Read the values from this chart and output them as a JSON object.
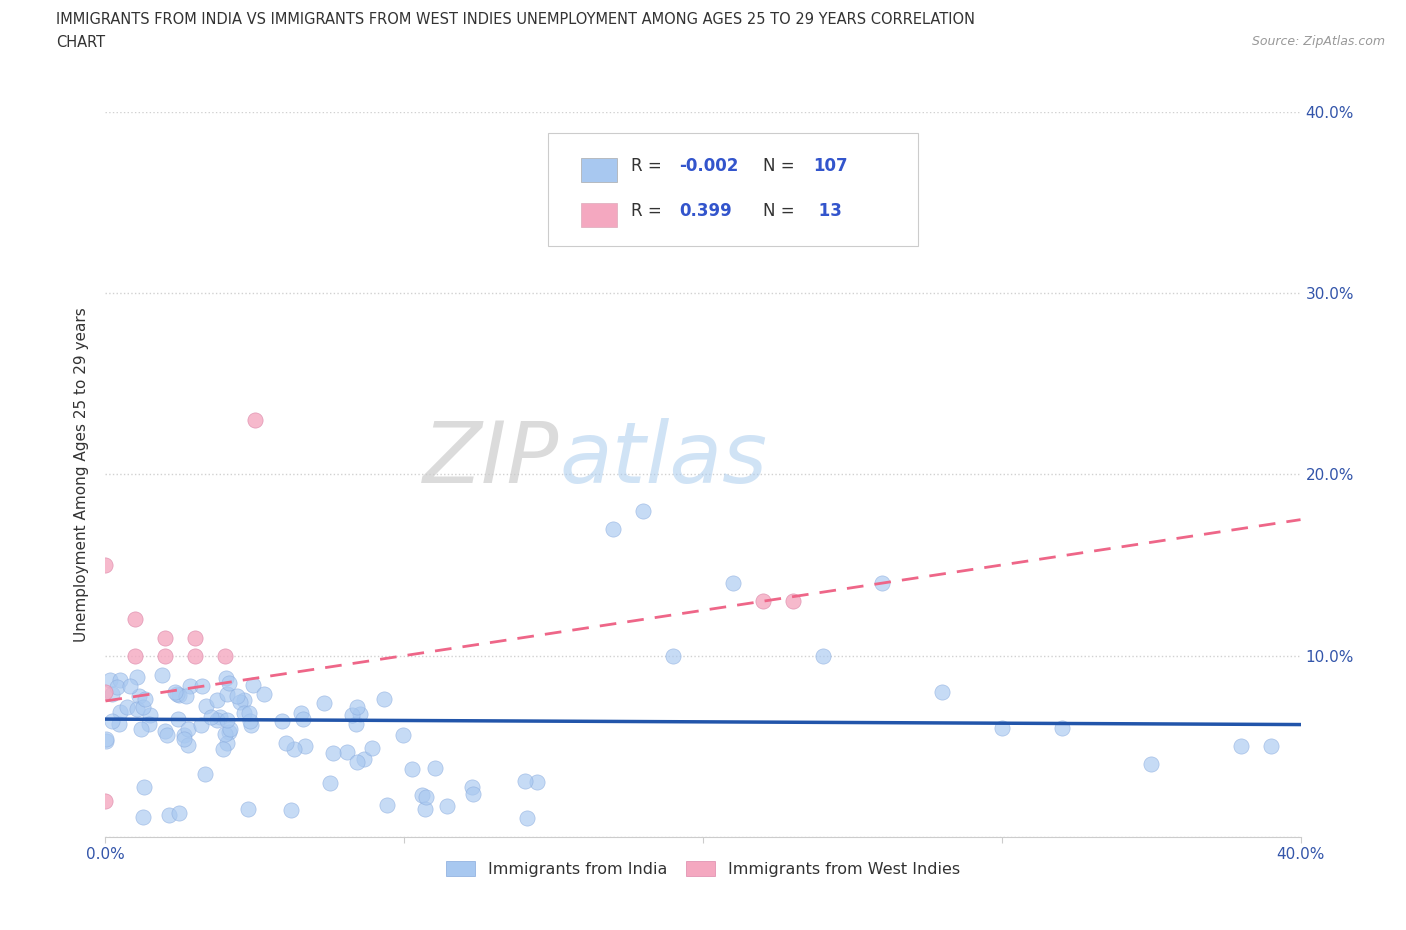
{
  "title_line1": "IMMIGRANTS FROM INDIA VS IMMIGRANTS FROM WEST INDIES UNEMPLOYMENT AMONG AGES 25 TO 29 YEARS CORRELATION",
  "title_line2": "CHART",
  "source": "Source: ZipAtlas.com",
  "ylabel": "Unemployment Among Ages 25 to 29 years",
  "xlim": [
    0.0,
    0.4
  ],
  "ylim": [
    0.0,
    0.4
  ],
  "xticks": [
    0.0,
    0.1,
    0.2,
    0.3,
    0.4
  ],
  "yticks": [
    0.0,
    0.1,
    0.2,
    0.3,
    0.4
  ],
  "xticklabels": [
    "0.0%",
    "",
    "",
    "",
    "40.0%"
  ],
  "yticklabels_right": [
    "",
    "10.0%",
    "20.0%",
    "30.0%",
    "40.0%"
  ],
  "india_R": -0.002,
  "india_N": 107,
  "westindies_R": 0.399,
  "westindies_N": 13,
  "india_color": "#a8c8f0",
  "westindies_color": "#f4a8c0",
  "india_line_color": "#2255aa",
  "westindies_line_color": "#ee6688",
  "india_line_y0": 0.065,
  "india_line_y1": 0.062,
  "wi_line_y0": 0.075,
  "wi_line_y1": 0.175,
  "wi_line_x0": 0.0,
  "wi_line_x1": 0.4,
  "background_color": "#ffffff",
  "grid_color": "#cccccc",
  "legend_label1": "Immigrants from India",
  "legend_label2": "Immigrants from West Indies",
  "watermark_zip": "ZIP",
  "watermark_atlas": "atlas"
}
